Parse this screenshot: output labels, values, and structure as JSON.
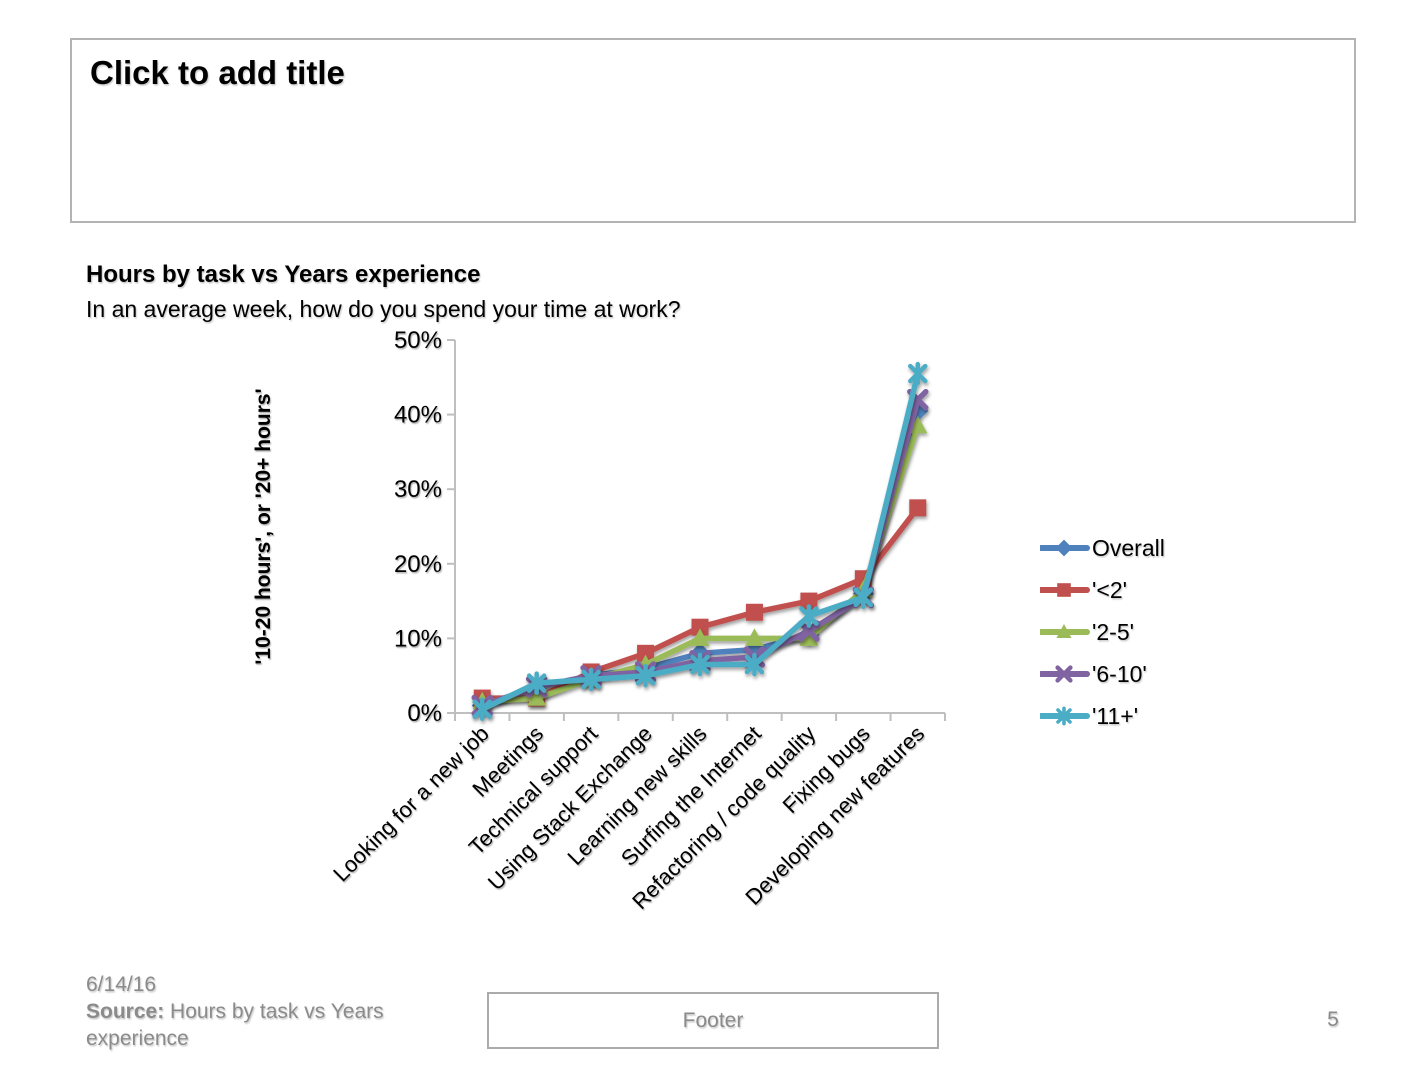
{
  "slide": {
    "title_placeholder": "Click to add title",
    "footer_placeholder": "Footer",
    "date": "6/14/16",
    "source_label": "Source:",
    "source_text": "Hours by task vs Years experience",
    "page_number": "5"
  },
  "chart_data": {
    "type": "line",
    "title": "Hours by task vs Years experience",
    "subtitle": "In an average week, how do you spend your time at work?",
    "ylabel": "'10-20 hours', or '20+ hours'",
    "xlabel": "",
    "ylim": [
      0,
      50
    ],
    "yticks": [
      0,
      10,
      20,
      30,
      40,
      50
    ],
    "ytick_suffix": "%",
    "grid": false,
    "legend_position": "right",
    "axis_color": "#bfbfbf",
    "categories": [
      "Looking for a new job",
      "Meetings",
      "Technical support",
      "Using Stack Exchange",
      "Learning new skills",
      "Surfing the Internet",
      "Refactoring / code quality",
      "Fixing bugs",
      "Developing new features"
    ],
    "series": [
      {
        "name": "Overall",
        "color": "#4F81BD",
        "marker": "diamond",
        "values": [
          1,
          3.5,
          5,
          6,
          8,
          8.5,
          10.5,
          16,
          40.5
        ]
      },
      {
        "name": "'<2'",
        "color": "#C0504D",
        "marker": "square",
        "values": [
          2,
          2,
          5.5,
          8,
          11.5,
          13.5,
          15,
          18,
          27.5
        ]
      },
      {
        "name": "'2-5'",
        "color": "#9BBB59",
        "marker": "triangle",
        "values": [
          1.5,
          2,
          4.5,
          6.5,
          10,
          10,
          10,
          16.5,
          38.5
        ]
      },
      {
        "name": "'6-10'",
        "color": "#8064A2",
        "marker": "x",
        "values": [
          1,
          3.5,
          5,
          5.5,
          7,
          7.5,
          11,
          15.5,
          42
        ]
      },
      {
        "name": "'11+'",
        "color": "#4BACC6",
        "marker": "asterisk",
        "values": [
          0.5,
          4,
          4.5,
          5,
          6.5,
          6.5,
          13,
          15.5,
          45.5
        ]
      }
    ]
  }
}
